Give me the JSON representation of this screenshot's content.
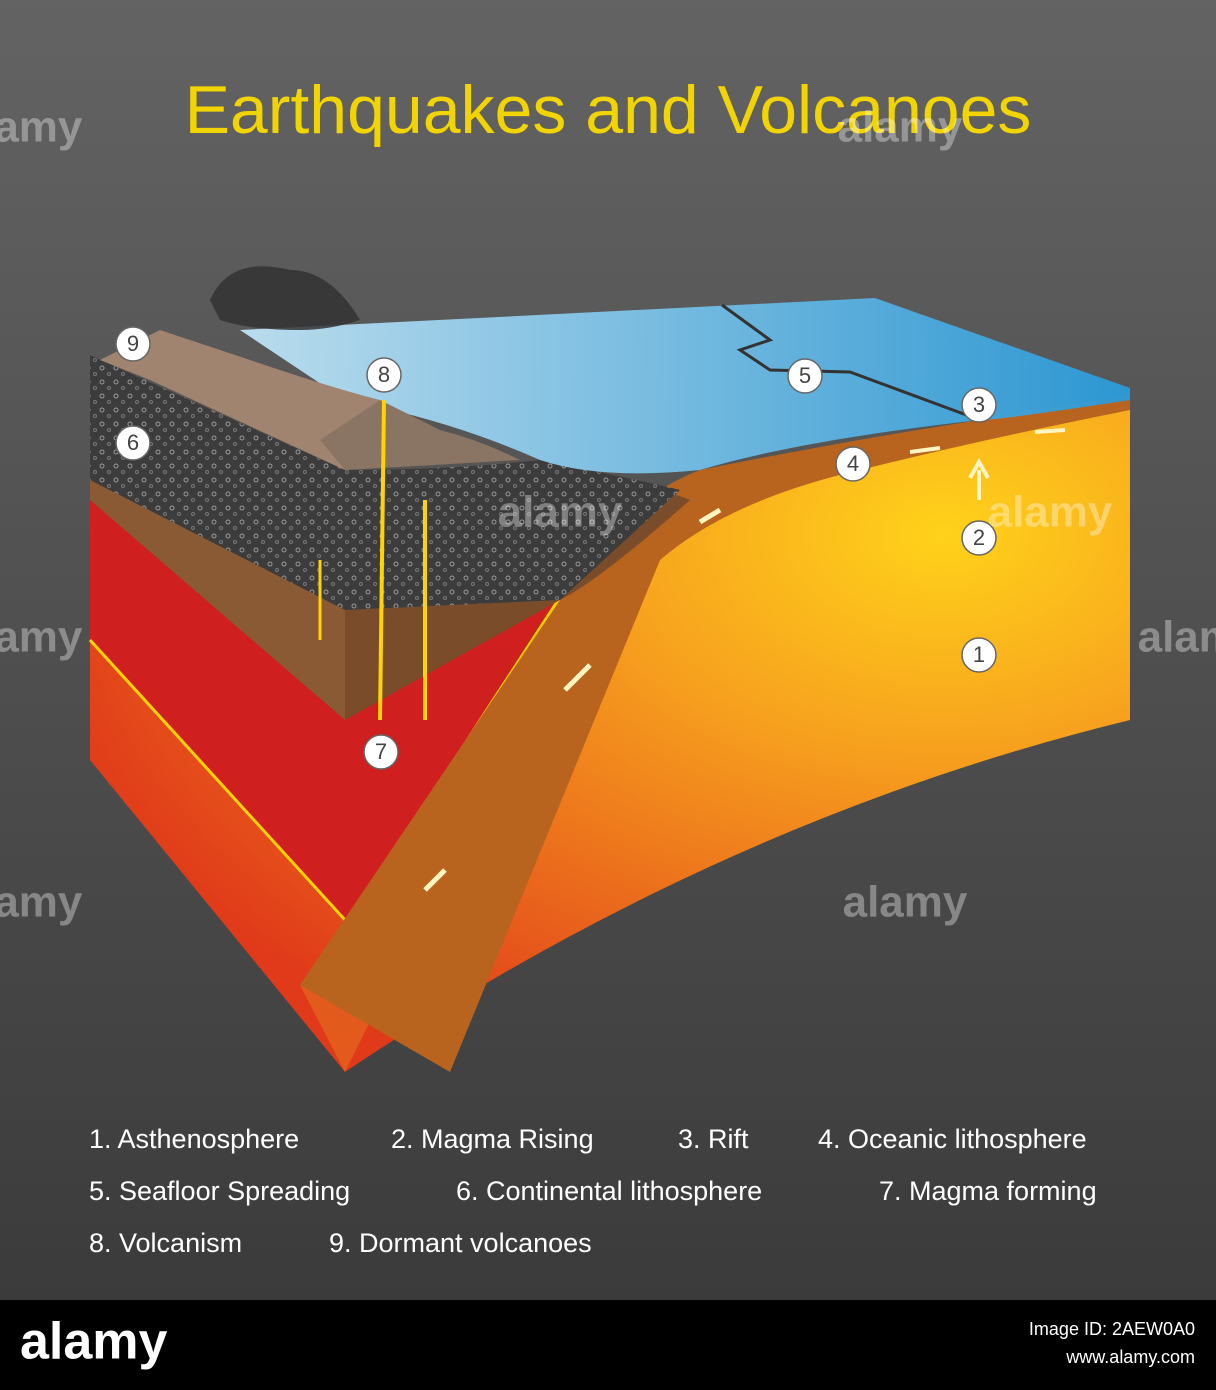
{
  "title": "Earthquakes and Volcanoes",
  "markers": [
    "1",
    "2",
    "3",
    "4",
    "5",
    "6",
    "7",
    "8",
    "9"
  ],
  "legend": [
    "1. Asthenosphere",
    "2. Magma Rising",
    "3. Rift",
    "4. Oceanic lithosphere",
    "5. Seafloor Spreading",
    "6. Continental lithosphere",
    "7. Magma forming",
    "8. Volcanism",
    "9. Dormant volcanoes"
  ],
  "watermark": "alamy",
  "footer": {
    "logo": "alamy",
    "image_id": "Image ID: 2AEW0A0",
    "url": "www.alamy.com"
  }
}
